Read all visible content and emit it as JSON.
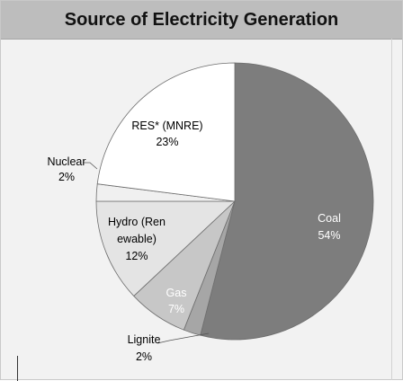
{
  "title": "Source of Electricity Generation",
  "chart_data": {
    "type": "pie",
    "title": "Source of Electricity Generation",
    "slices": [
      {
        "label": "Coal",
        "value": 54,
        "pct_text": "54%",
        "color": "#7d7d7d",
        "text_color": "#ffffff"
      },
      {
        "label": "Lignite",
        "value": 2,
        "pct_text": "2%",
        "color": "#a6a6a6",
        "text_color": "#1a1a1a"
      },
      {
        "label": "Gas",
        "value": 7,
        "pct_text": "7%",
        "color": "#c7c7c7",
        "text_color": "#ffffff"
      },
      {
        "label": "Hydro (Ren ewable)",
        "line1": "Hydro (Ren",
        "line2": "ewable)",
        "value": 12,
        "pct_text": "12%",
        "color": "#e4e4e4",
        "text_color": "#1a1a1a"
      },
      {
        "label": "Nuclear",
        "value": 2,
        "pct_text": "2%",
        "color": "#f0f0f0",
        "text_color": "#1a1a1a"
      },
      {
        "label": "RES* (MNRE)",
        "value": 23,
        "pct_text": "23%",
        "color": "#ffffff",
        "text_color": "#1a1a1a"
      }
    ],
    "legend": "none"
  }
}
